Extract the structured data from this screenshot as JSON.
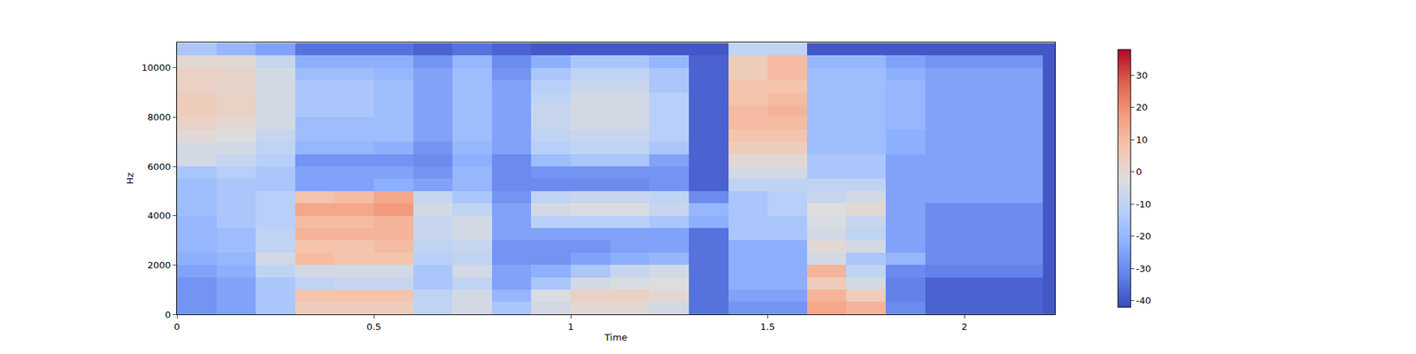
{
  "chart_data": {
    "type": "heatmap",
    "x_label": "Time",
    "y_label": "Hz",
    "xlim": [
      0,
      2.23
    ],
    "xticks": [
      0,
      0.5,
      1,
      1.5,
      2
    ],
    "ylim": [
      0,
      11025
    ],
    "yticks": [
      0,
      2000,
      4000,
      6000,
      8000,
      10000
    ],
    "colorbar_range": [
      -42,
      38
    ],
    "colorbar_ticks": [
      -40,
      -30,
      -20,
      -10,
      0,
      10,
      20,
      30
    ],
    "x": [
      0.05,
      0.15,
      0.25,
      0.35,
      0.45,
      0.55,
      0.65,
      0.75,
      0.85,
      0.95,
      1.05,
      1.15,
      1.25,
      1.35,
      1.45,
      1.55,
      1.65,
      1.75,
      1.85,
      1.95,
      2.05,
      2.15,
      2.25
    ],
    "y": [
      250,
      750,
      1250,
      1750,
      2250,
      2750,
      3250,
      3750,
      4250,
      4750,
      5250,
      5750,
      6250,
      6750,
      7250,
      7750,
      8250,
      8750,
      9250,
      9750,
      10250,
      10750
    ],
    "z": [
      [
        -28,
        -25,
        -15,
        5,
        5,
        5,
        -10,
        -5,
        -15,
        -5,
        0,
        0,
        -5,
        -35,
        -28,
        -28,
        15,
        12,
        -30,
        -38,
        -38,
        -38,
        -40
      ],
      [
        -28,
        -25,
        -15,
        8,
        8,
        8,
        -10,
        -5,
        -20,
        -3,
        3,
        3,
        0,
        -35,
        -25,
        -25,
        12,
        5,
        -32,
        -38,
        -38,
        -38,
        -40
      ],
      [
        -28,
        -25,
        -15,
        -10,
        -8,
        -8,
        -15,
        -10,
        -25,
        -15,
        -5,
        -3,
        -2,
        -35,
        -22,
        -22,
        5,
        -5,
        -32,
        -38,
        -38,
        -38,
        -40
      ],
      [
        -25,
        -22,
        -10,
        -5,
        -5,
        -5,
        -15,
        -5,
        -25,
        -22,
        -15,
        -8,
        -5,
        -35,
        -22,
        -22,
        12,
        -10,
        -30,
        -32,
        -32,
        -32,
        -40
      ],
      [
        -22,
        -20,
        -5,
        10,
        8,
        8,
        -12,
        -10,
        -28,
        -28,
        -25,
        -22,
        -20,
        -35,
        -22,
        -22,
        -5,
        -15,
        -20,
        -30,
        -30,
        -30,
        -40
      ],
      [
        -20,
        -18,
        -10,
        8,
        8,
        10,
        -10,
        -8,
        -28,
        -28,
        -28,
        -25,
        -25,
        -35,
        -22,
        -22,
        0,
        -5,
        -25,
        -30,
        -30,
        -30,
        -40
      ],
      [
        -20,
        -18,
        -10,
        12,
        12,
        12,
        -8,
        -5,
        -25,
        -25,
        -25,
        -25,
        -25,
        -35,
        -15,
        -15,
        -5,
        -10,
        -25,
        -30,
        -30,
        -30,
        -40
      ],
      [
        -20,
        -15,
        -12,
        10,
        10,
        12,
        -8,
        -5,
        -25,
        -12,
        -12,
        -12,
        -15,
        -22,
        -15,
        -15,
        -3,
        -8,
        -25,
        -30,
        -30,
        -30,
        -40
      ],
      [
        -18,
        -15,
        -12,
        15,
        15,
        18,
        -5,
        -10,
        -25,
        -5,
        -3,
        -3,
        -8,
        -20,
        -15,
        -12,
        -2,
        0,
        -25,
        -30,
        -30,
        -30,
        -40
      ],
      [
        -18,
        -15,
        -12,
        8,
        10,
        15,
        -8,
        -15,
        -28,
        -10,
        -8,
        -8,
        -10,
        -30,
        -15,
        -12,
        -8,
        -5,
        -25,
        -25,
        -25,
        -25,
        -40
      ],
      [
        -18,
        -15,
        -15,
        -25,
        -25,
        -22,
        -25,
        -20,
        -30,
        -30,
        -30,
        -30,
        -28,
        -38,
        -10,
        -10,
        -10,
        -10,
        -25,
        -25,
        -25,
        -25,
        -40
      ],
      [
        -15,
        -12,
        -15,
        -25,
        -25,
        -25,
        -28,
        -20,
        -30,
        -28,
        -28,
        -28,
        -28,
        -38,
        -5,
        -5,
        -15,
        -15,
        -25,
        -25,
        -25,
        -25,
        -40
      ],
      [
        -5,
        -8,
        -12,
        -28,
        -28,
        -28,
        -30,
        -22,
        -30,
        -18,
        -15,
        -15,
        -25,
        -38,
        0,
        0,
        -15,
        -15,
        -25,
        -25,
        -25,
        -25,
        -40
      ],
      [
        -5,
        -5,
        -10,
        -20,
        -20,
        -22,
        -28,
        -20,
        -25,
        -12,
        -10,
        -10,
        -15,
        -38,
        5,
        5,
        -18,
        -18,
        -22,
        -25,
        -25,
        -25,
        -40
      ],
      [
        0,
        -2,
        -8,
        -18,
        -18,
        -18,
        -25,
        -18,
        -25,
        -10,
        -8,
        -8,
        -12,
        -38,
        8,
        8,
        -18,
        -18,
        -22,
        -25,
        -25,
        -25,
        -40
      ],
      [
        3,
        0,
        -5,
        -18,
        -18,
        -18,
        -25,
        -18,
        -25,
        -8,
        -5,
        -5,
        -12,
        -38,
        10,
        10,
        -18,
        -18,
        -20,
        -25,
        -25,
        -25,
        -40
      ],
      [
        5,
        3,
        -5,
        -15,
        -15,
        -18,
        -25,
        -18,
        -25,
        -8,
        -5,
        -5,
        -12,
        -38,
        10,
        12,
        -18,
        -18,
        -20,
        -25,
        -25,
        -25,
        -40
      ],
      [
        5,
        3,
        -5,
        -15,
        -15,
        -18,
        -25,
        -18,
        -25,
        -10,
        -5,
        -5,
        -12,
        -38,
        8,
        10,
        -18,
        -18,
        -20,
        -25,
        -25,
        -25,
        -40
      ],
      [
        3,
        2,
        -5,
        -15,
        -15,
        -18,
        -25,
        -18,
        -25,
        -12,
        -8,
        -8,
        -15,
        -38,
        8,
        8,
        -18,
        -18,
        -20,
        -25,
        -25,
        -25,
        -40
      ],
      [
        3,
        2,
        -5,
        -18,
        -18,
        -20,
        -25,
        -18,
        -28,
        -15,
        -10,
        -10,
        -15,
        -38,
        5,
        10,
        -18,
        -18,
        -22,
        -25,
        -25,
        -25,
        -40
      ],
      [
        0,
        0,
        -8,
        -22,
        -22,
        -22,
        -28,
        -20,
        -30,
        -22,
        -15,
        -15,
        -20,
        -38,
        5,
        10,
        -20,
        -20,
        -25,
        -28,
        -28,
        -28,
        -40
      ],
      [
        -15,
        -20,
        -25,
        -35,
        -35,
        -35,
        -38,
        -35,
        -38,
        -40,
        -40,
        -40,
        -40,
        -40,
        -10,
        -10,
        -40,
        -40,
        -40,
        -40,
        -40,
        -40,
        -40
      ]
    ]
  }
}
